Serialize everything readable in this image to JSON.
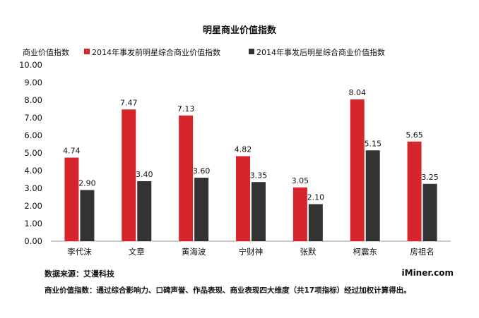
{
  "chart_data": {
    "type": "bar",
    "title": "明星商业价值指数",
    "ylabel": "商业价值指数",
    "xlabel": "",
    "categories": [
      "李代沫",
      "文章",
      "黄海波",
      "宁财神",
      "张默",
      "柯震东",
      "房祖名"
    ],
    "series": [
      {
        "name": "2014年事发前明星综合商业价值指数",
        "color": "#d7262b",
        "values": [
          4.74,
          7.47,
          7.13,
          4.82,
          3.05,
          8.04,
          5.65
        ],
        "labels": [
          "4.74",
          "7.47",
          "7.13",
          "4.82",
          "3.05",
          "8.04",
          "5.65"
        ]
      },
      {
        "name": "2014年事发后明星综合商业价值指数",
        "color": "#333333",
        "values": [
          2.9,
          3.4,
          3.6,
          3.35,
          2.1,
          5.15,
          3.25
        ],
        "labels": [
          "2.90",
          "3.40",
          "3.60",
          "3.35",
          "2.10",
          "5.15",
          "3.25"
        ]
      }
    ],
    "ylim": [
      0,
      10
    ],
    "yticks": [
      "0.00",
      "1.00",
      "2.00",
      "3.00",
      "4.00",
      "5.00",
      "6.00",
      "7.00",
      "8.00",
      "9.00",
      "10.00"
    ],
    "grid": false,
    "legend_position": "top"
  },
  "footer": {
    "source": "数据来源：艾漫科技",
    "brand": "iMiner.com",
    "note": "商业价值指数：通过综合影响力、口碑声誉、作品表现、商业表现四大维度（共17项指标）经过加权计算得出。"
  }
}
